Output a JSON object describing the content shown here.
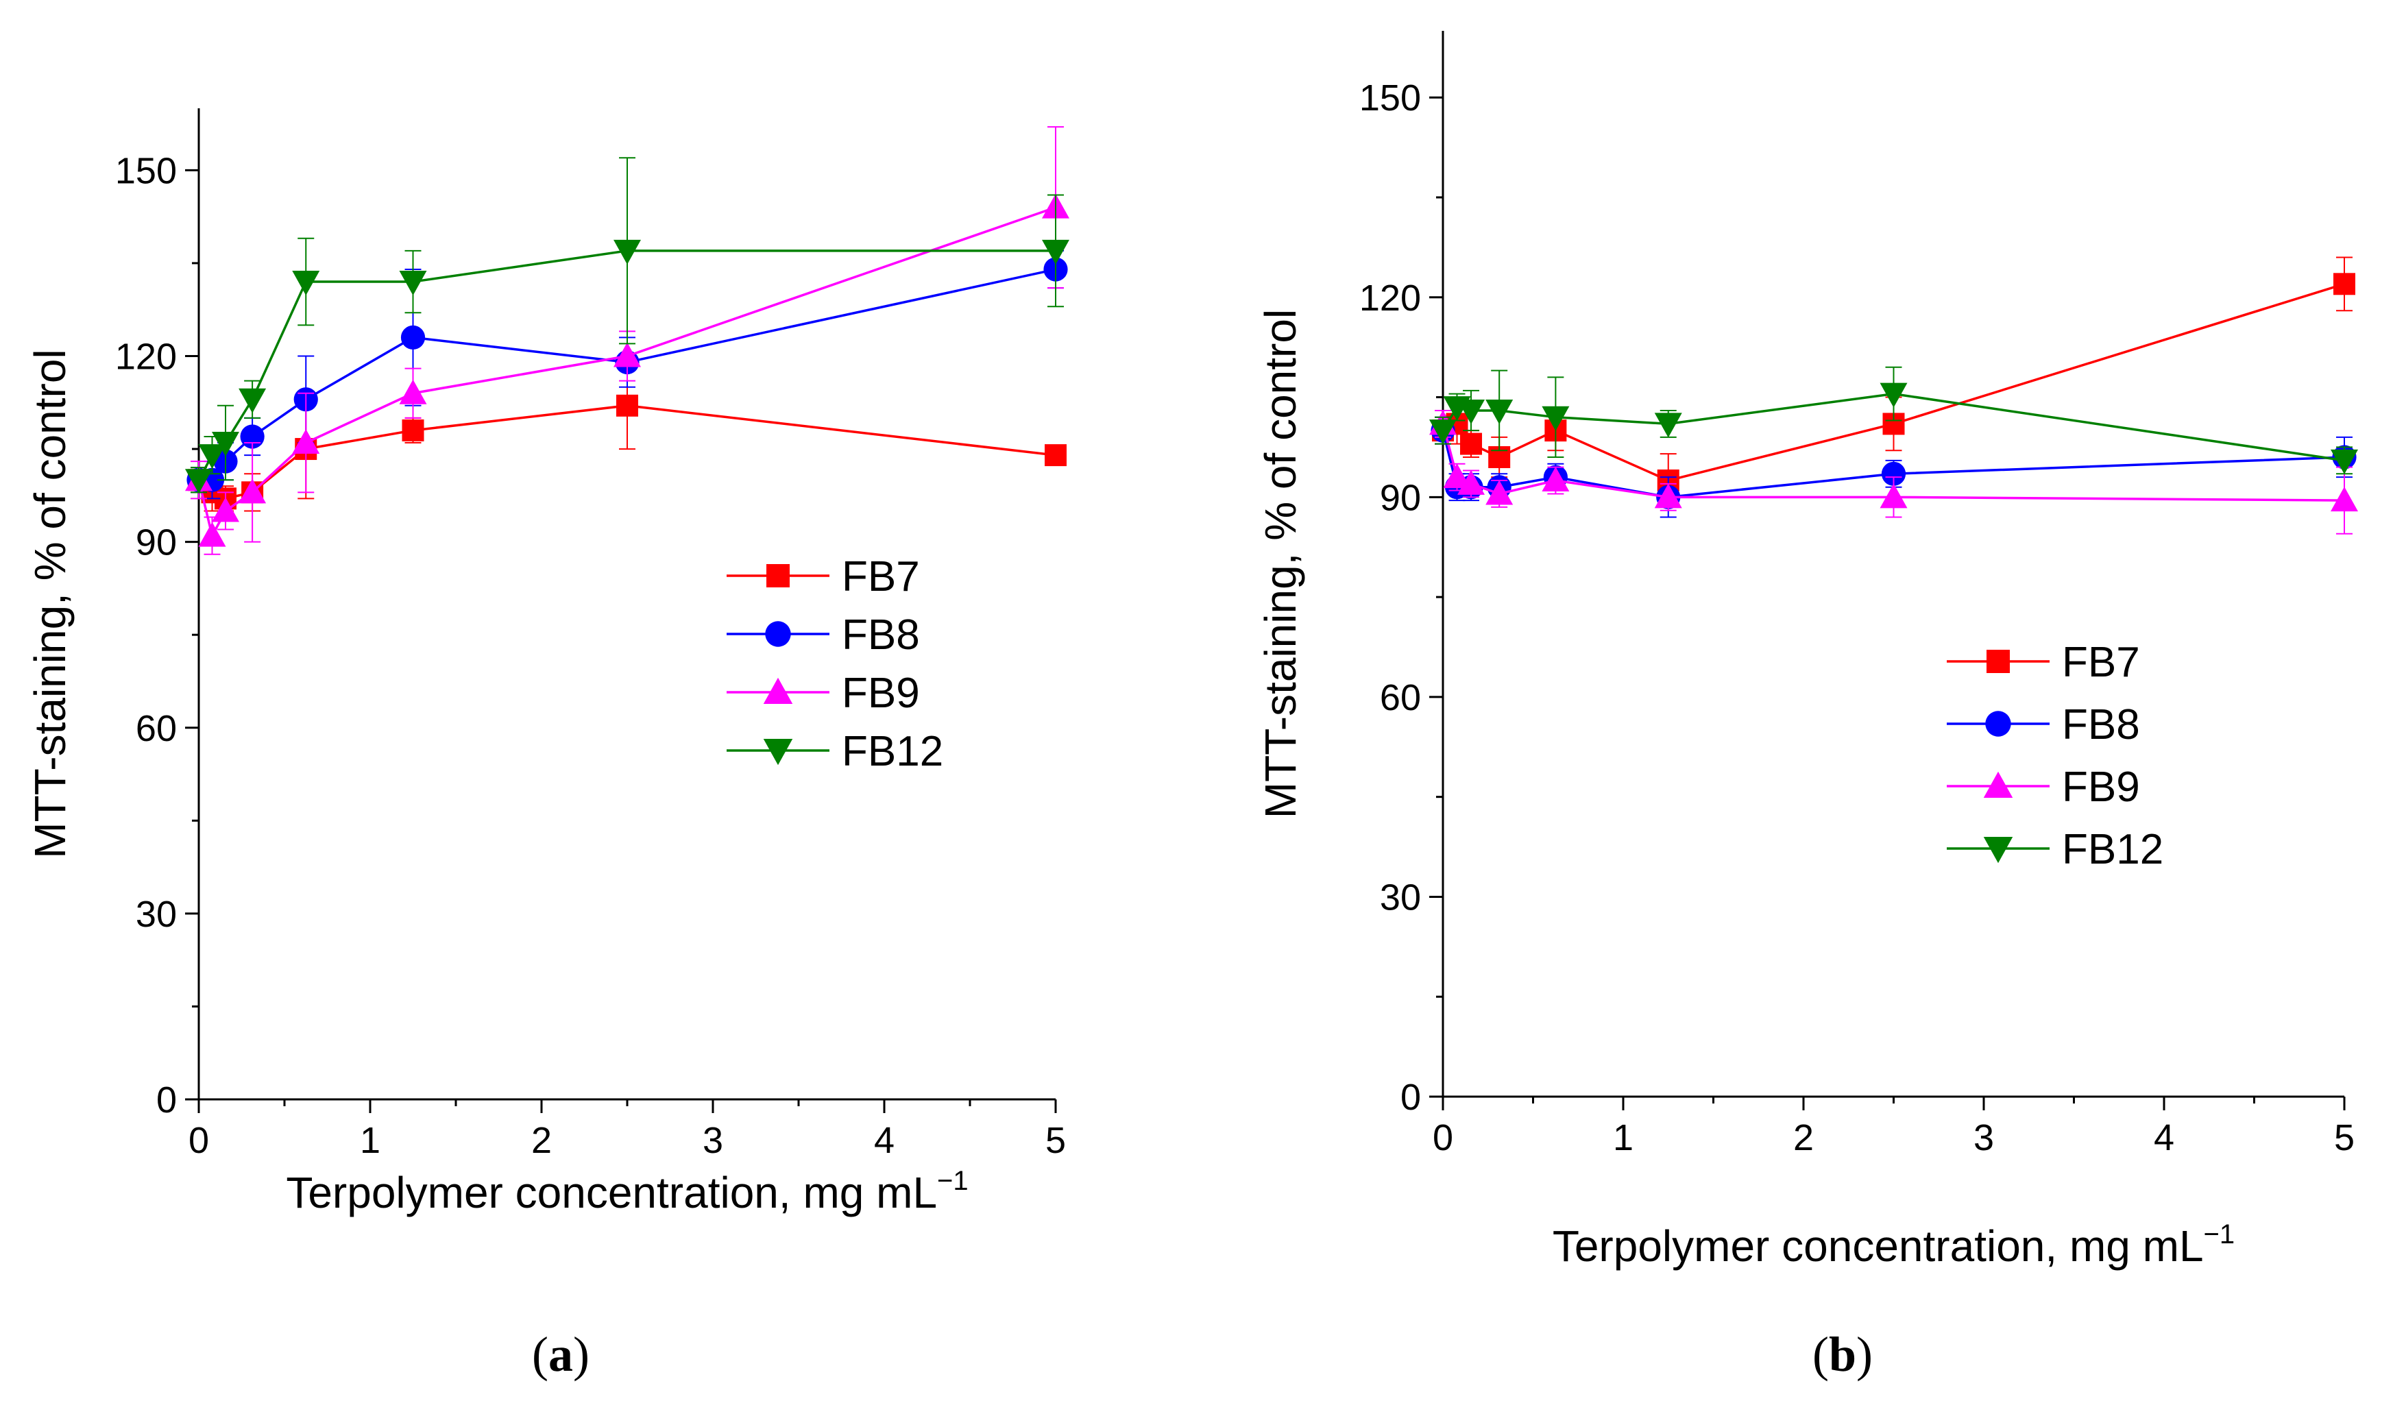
{
  "chart_data": [
    {
      "type": "line",
      "caption_letter": "a",
      "xlabel": "Terpolymer concentration, mg mL",
      "xlabel_sup": "−1",
      "ylabel": "MTT-staining, % of control",
      "xlim": [
        0,
        5
      ],
      "ylim": [
        0,
        160
      ],
      "xticks": [
        "0",
        "1",
        "2",
        "3",
        "4",
        "5"
      ],
      "xtick_values": [
        0,
        1,
        2,
        3,
        4,
        5
      ],
      "yticks": [
        "0",
        "30",
        "60",
        "90",
        "120",
        "150"
      ],
      "ytick_values": [
        0,
        30,
        60,
        90,
        120,
        150
      ],
      "legend": {
        "position": "center-right"
      },
      "series": [
        {
          "name": "FB7",
          "color": "#ff0000",
          "marker": "square",
          "x": [
            0,
            0.078,
            0.156,
            0.3125,
            0.625,
            1.25,
            2.5,
            5
          ],
          "y": [
            100,
            98,
            97,
            98,
            105,
            108,
            112,
            104
          ],
          "err": [
            2,
            3,
            2,
            3,
            8,
            2,
            7,
            1
          ]
        },
        {
          "name": "FB8",
          "color": "#0000ff",
          "marker": "circle",
          "x": [
            0,
            0.078,
            0.156,
            0.3125,
            0.625,
            1.25,
            2.5,
            5
          ],
          "y": [
            100,
            100,
            103,
            107,
            113,
            123,
            119,
            134
          ],
          "err": [
            2,
            3,
            3,
            3,
            7,
            11,
            4,
            3
          ]
        },
        {
          "name": "FB9",
          "color": "#ff00ff",
          "marker": "triangle-up",
          "x": [
            0,
            0.078,
            0.156,
            0.3125,
            0.625,
            1.25,
            2.5,
            5
          ],
          "y": [
            100,
            91,
            95,
            98,
            106,
            114,
            120,
            144
          ],
          "err": [
            3,
            3,
            3,
            8,
            8,
            4,
            4,
            13
          ]
        },
        {
          "name": "FB12",
          "color": "#008000",
          "marker": "triangle-down",
          "x": [
            0,
            0.078,
            0.156,
            0.3125,
            0.625,
            1.25,
            2.5,
            5
          ],
          "y": [
            100,
            104,
            106,
            113,
            132,
            132,
            137,
            137
          ],
          "err": [
            2,
            3,
            6,
            3,
            7,
            5,
            15,
            9
          ]
        }
      ]
    },
    {
      "type": "line",
      "caption_letter": "b",
      "xlabel": "Terpolymer concentration, mg mL",
      "xlabel_sup": "−1",
      "ylabel": "MTT-staining, % of control",
      "xlim": [
        0,
        5
      ],
      "ylim": [
        0,
        160
      ],
      "xticks": [
        "0",
        "1",
        "2",
        "3",
        "4",
        "5"
      ],
      "xtick_values": [
        0,
        1,
        2,
        3,
        4,
        5
      ],
      "yticks": [
        "0",
        "30",
        "60",
        "90",
        "120",
        "150"
      ],
      "ytick_values": [
        0,
        30,
        60,
        90,
        120,
        150
      ],
      "legend": {
        "position": "center-right"
      },
      "series": [
        {
          "name": "FB7",
          "color": "#ff0000",
          "marker": "square",
          "x": [
            0,
            0.078,
            0.156,
            0.3125,
            0.625,
            1.25,
            2.5,
            5
          ],
          "y": [
            100,
            101,
            98,
            96,
            100,
            92.5,
            101,
            122
          ],
          "err": [
            2,
            3,
            2,
            3,
            3,
            4,
            4,
            4
          ]
        },
        {
          "name": "FB8",
          "color": "#0000ff",
          "marker": "circle",
          "x": [
            0,
            0.078,
            0.156,
            0.3125,
            0.625,
            1.25,
            2.5,
            5
          ],
          "y": [
            100,
            91.5,
            91.5,
            91.5,
            93,
            90,
            93.5,
            96
          ],
          "err": [
            2,
            2,
            2,
            2,
            2,
            3,
            2,
            3
          ]
        },
        {
          "name": "FB9",
          "color": "#ff00ff",
          "marker": "triangle-up",
          "x": [
            0,
            0.078,
            0.156,
            0.3125,
            0.625,
            1.25,
            2.5,
            5
          ],
          "y": [
            101,
            93,
            92,
            90.5,
            92.5,
            90,
            90,
            89.5
          ],
          "err": [
            2,
            2,
            2,
            2,
            2,
            2,
            3,
            5
          ]
        },
        {
          "name": "FB12",
          "color": "#008000",
          "marker": "triangle-down",
          "x": [
            0,
            0.078,
            0.156,
            0.3125,
            0.625,
            1.25,
            2.5,
            5
          ],
          "y": [
            100,
            103.5,
            103,
            103,
            102,
            101,
            105.5,
            95.5
          ],
          "err": [
            2,
            2,
            3,
            6,
            6,
            2,
            4,
            2
          ]
        }
      ]
    }
  ]
}
